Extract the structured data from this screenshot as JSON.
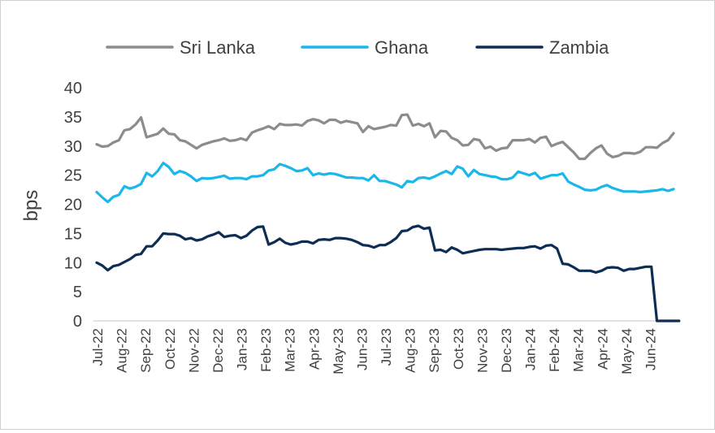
{
  "chart_data": {
    "type": "line",
    "ylabel": "bps",
    "ylim": [
      0,
      40
    ],
    "yticks": [
      "0",
      "5",
      "10",
      "15",
      "20",
      "25",
      "30",
      "35",
      "40"
    ],
    "grid": false,
    "legend_position": "top",
    "month_labels": [
      "Jul-22",
      "Aug-22",
      "Sep-22",
      "Oct-22",
      "Nov-22",
      "Dec-22",
      "Jan-23",
      "Feb-23",
      "Mar-23",
      "Apr-23",
      "May-23",
      "Jun-23",
      "Jul-23",
      "Aug-23",
      "Sep-23",
      "Oct-23",
      "Nov-23",
      "Dec-23",
      "Jan-24",
      "Feb-24",
      "Mar-24",
      "Apr-24",
      "May-24",
      "Jun-24"
    ],
    "series": [
      {
        "name": "Sri Lanka",
        "color": "#8c8c8c",
        "values": [
          30.3,
          29.9,
          30.0,
          30.6,
          31.0,
          32.7,
          32.9,
          33.7,
          34.9,
          31.5,
          31.8,
          32.1,
          33.0,
          32.1,
          32.0,
          31.0,
          30.8,
          30.2,
          29.6,
          30.2,
          30.5,
          30.8,
          31.0,
          31.3,
          30.9,
          31.0,
          31.3,
          31.0,
          32.3,
          32.7,
          33.0,
          33.4,
          32.9,
          33.8,
          33.6,
          33.6,
          33.7,
          33.5,
          34.3,
          34.6,
          34.4,
          33.9,
          34.5,
          34.5,
          34.0,
          34.3,
          34.1,
          33.9,
          32.4,
          33.4,
          32.9,
          33.1,
          33.3,
          33.6,
          33.5,
          35.3,
          35.4,
          33.5,
          33.8,
          33.4,
          33.9,
          31.5,
          32.6,
          32.5,
          31.4,
          31.0,
          30.1,
          30.2,
          31.2,
          31.0,
          29.6,
          29.9,
          29.2,
          29.6,
          29.7,
          31.0,
          31.0,
          31.0,
          31.2,
          30.6,
          31.4,
          31.6,
          30.0,
          30.4,
          30.7,
          29.8,
          28.9,
          27.8,
          27.8,
          28.8,
          29.6,
          30.1,
          28.7,
          28.1,
          28.3,
          28.8,
          28.8,
          28.7,
          29.0,
          29.8,
          29.8,
          29.7,
          30.5,
          31.0,
          32.2
        ]
      },
      {
        "name": "Ghana",
        "color": "#1ab7ea",
        "values": [
          22.1,
          21.2,
          20.4,
          21.3,
          21.6,
          23.1,
          22.7,
          23.0,
          23.5,
          25.4,
          24.8,
          25.7,
          27.1,
          26.4,
          25.2,
          25.7,
          25.4,
          24.8,
          24.0,
          24.5,
          24.4,
          24.5,
          24.7,
          24.9,
          24.4,
          24.5,
          24.5,
          24.3,
          24.8,
          24.8,
          25.0,
          25.8,
          26.0,
          26.9,
          26.6,
          26.2,
          25.7,
          25.8,
          26.2,
          25.0,
          25.3,
          25.1,
          25.3,
          25.2,
          24.9,
          24.6,
          24.6,
          24.5,
          24.5,
          24.1,
          25.0,
          24.0,
          24.0,
          23.7,
          23.4,
          22.9,
          24.0,
          23.8,
          24.5,
          24.6,
          24.4,
          24.8,
          25.3,
          25.7,
          25.2,
          26.5,
          26.1,
          24.8,
          25.9,
          25.2,
          25.0,
          24.8,
          24.7,
          24.3,
          24.3,
          24.6,
          25.6,
          25.3,
          25.0,
          25.4,
          24.4,
          24.7,
          25.0,
          25.0,
          25.3,
          23.9,
          23.4,
          23.0,
          22.5,
          22.4,
          22.5,
          23.0,
          23.3,
          22.8,
          22.5,
          22.2,
          22.2,
          22.2,
          22.1,
          22.2,
          22.3,
          22.4,
          22.6,
          22.3,
          22.6
        ]
      },
      {
        "name": "Zambia",
        "color": "#0d2d54",
        "values": [
          10.0,
          9.5,
          8.7,
          9.4,
          9.6,
          10.1,
          10.6,
          11.3,
          11.5,
          12.8,
          12.8,
          13.8,
          15.0,
          14.9,
          14.9,
          14.6,
          14.0,
          14.2,
          13.8,
          14.0,
          14.5,
          14.8,
          15.2,
          14.4,
          14.6,
          14.7,
          14.2,
          14.6,
          15.5,
          16.1,
          16.2,
          13.1,
          13.5,
          14.1,
          13.4,
          13.1,
          13.3,
          13.6,
          13.6,
          13.3,
          13.9,
          14.0,
          13.9,
          14.2,
          14.2,
          14.1,
          13.9,
          13.5,
          13.0,
          12.9,
          12.6,
          13.0,
          13.0,
          13.5,
          14.2,
          15.4,
          15.5,
          16.1,
          16.3,
          15.8,
          16.0,
          12.1,
          12.2,
          11.8,
          12.6,
          12.2,
          11.6,
          11.8,
          12.0,
          12.2,
          12.3,
          12.3,
          12.3,
          12.2,
          12.3,
          12.4,
          12.5,
          12.5,
          12.7,
          12.8,
          12.4,
          12.9,
          13.0,
          12.4,
          9.8,
          9.7,
          9.2,
          8.6,
          8.6,
          8.6,
          8.3,
          8.6,
          9.1,
          9.2,
          9.1,
          8.6,
          8.9,
          8.9,
          9.1,
          9.3,
          9.3,
          0.0,
          0.0,
          0.0,
          0.0,
          0.0
        ]
      }
    ]
  }
}
